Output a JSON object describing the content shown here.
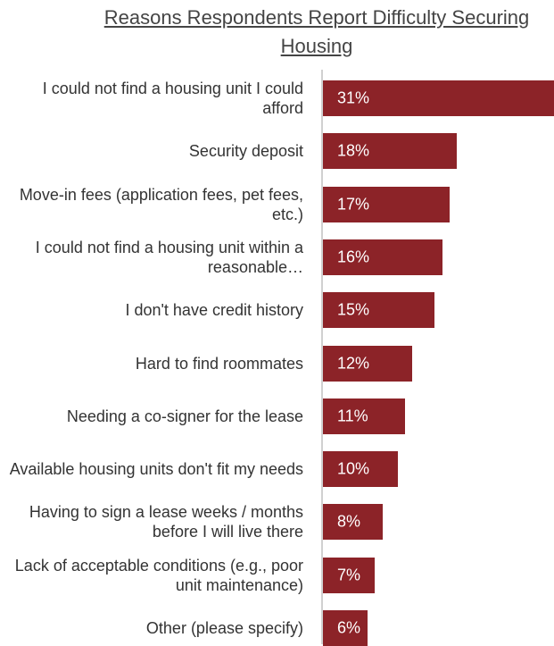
{
  "chart_data": {
    "type": "bar",
    "orientation": "horizontal",
    "title": "Reasons Respondents Report Difficulty Securing Housing",
    "categories": [
      "I could not find a housing unit I could afford",
      "Security deposit",
      "Move-in fees (application fees, pet fees, etc.)",
      "I could not find a housing unit within a reasonable…",
      "I don't have credit history",
      "Hard to find roommates",
      "Needing a co-signer for the lease",
      "Available housing units don't fit my needs",
      "Having to sign a lease weeks / months before I will live there",
      "Lack of acceptable conditions (e.g., poor unit maintenance)",
      "Other (please specify)"
    ],
    "values": [
      31,
      18,
      17,
      16,
      15,
      12,
      11,
      10,
      8,
      7,
      6
    ],
    "value_labels": [
      "31%",
      "18%",
      "17%",
      "16%",
      "15%",
      "12%",
      "11%",
      "10%",
      "8%",
      "7%",
      "6%"
    ],
    "color": "#8c2328"
  }
}
